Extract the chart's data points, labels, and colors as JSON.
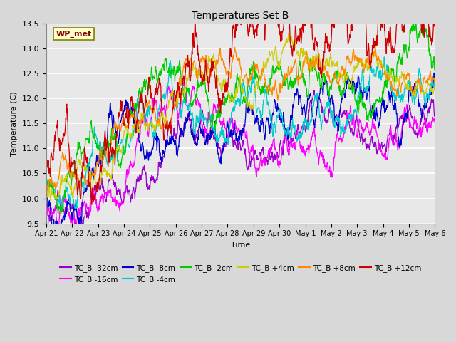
{
  "title": "Temperatures Set B",
  "xlabel": "Time",
  "ylabel": "Temperature (C)",
  "ylim": [
    9.5,
    13.5
  ],
  "annotation_label": "WP_met",
  "series_colors": {
    "TC_B -32cm": "#9900cc",
    "TC_B -16cm": "#ff00ff",
    "TC_B -8cm": "#0000cc",
    "TC_B -4cm": "#00cccc",
    "TC_B -2cm": "#00cc00",
    "TC_B +4cm": "#cccc00",
    "TC_B +8cm": "#ff8800",
    "TC_B +12cm": "#cc0000"
  },
  "x_tick_labels": [
    "Apr 21",
    "Apr 22",
    "Apr 23",
    "Apr 24",
    "Apr 25",
    "Apr 26",
    "Apr 27",
    "Apr 28",
    "Apr 29",
    "Apr 30",
    "May 1",
    "May 2",
    "May 3",
    "May 4",
    "May 5",
    "May 6"
  ],
  "bg_color": "#e8e8e8",
  "grid_color": "#ffffff",
  "n_points": 1500,
  "seed": 42
}
